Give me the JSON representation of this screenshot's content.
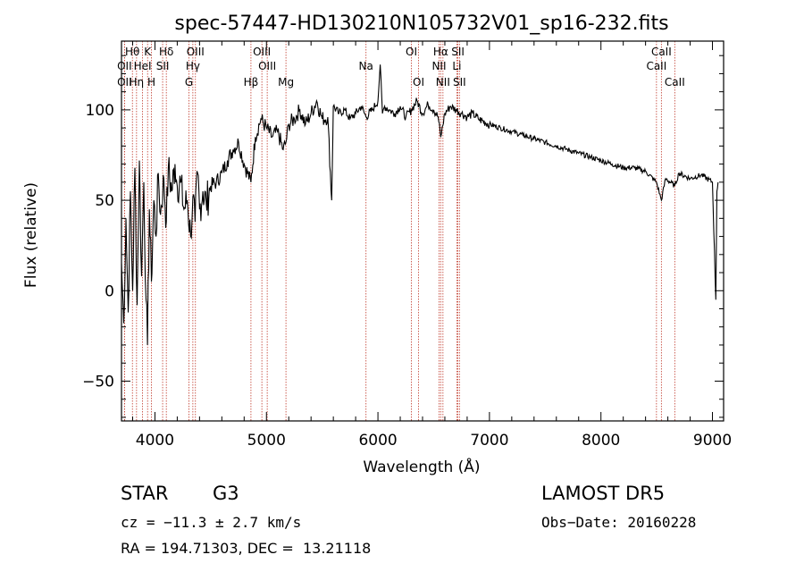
{
  "chart_data": {
    "type": "line",
    "title": "spec-57447-HD130210N105732V01_sp16-232.fits",
    "xlabel": "Wavelength (Å)",
    "ylabel": "Flux (relative)",
    "xlim": [
      3700,
      9100
    ],
    "ylim": [
      -72,
      138
    ],
    "xticks": [
      4000,
      5000,
      6000,
      7000,
      8000,
      9000
    ],
    "yticks": [
      -50,
      0,
      50,
      100
    ],
    "grid": false,
    "series": [
      {
        "color": "#000000",
        "x": [
          3700,
          3720,
          3740,
          3760,
          3780,
          3800,
          3820,
          3840,
          3860,
          3880,
          3900,
          3920,
          3933,
          3950,
          3968,
          3990,
          4010,
          4030,
          4050,
          4080,
          4102,
          4120,
          4150,
          4180,
          4200,
          4230,
          4260,
          4290,
          4320,
          4340,
          4360,
          4383,
          4400,
          4430,
          4460,
          4500,
          4550,
          4600,
          4650,
          4700,
          4750,
          4800,
          4861,
          4900,
          4950,
          5000,
          5050,
          5100,
          5150,
          5175,
          5200,
          5250,
          5300,
          5350,
          5400,
          5450,
          5500,
          5550,
          5585,
          5600,
          5650,
          5700,
          5750,
          5800,
          5850,
          5893,
          5950,
          6000,
          6020,
          6040,
          6060,
          6100,
          6150,
          6200,
          6250,
          6300,
          6350,
          6400,
          6450,
          6500,
          6540,
          6563,
          6600,
          6650,
          6700,
          6750,
          6800,
          6850,
          6900,
          7000,
          7100,
          7200,
          7300,
          7400,
          7500,
          7600,
          7700,
          7800,
          7900,
          8000,
          8100,
          8200,
          8300,
          8400,
          8498,
          8542,
          8580,
          8662,
          8700,
          8800,
          8900,
          9000,
          9030,
          9040,
          9050
        ],
        "y": [
          15,
          -18,
          40,
          -12,
          55,
          0,
          68,
          -8,
          72,
          8,
          60,
          -5,
          -30,
          45,
          5,
          50,
          30,
          65,
          42,
          62,
          38,
          68,
          55,
          70,
          58,
          60,
          45,
          50,
          30,
          52,
          38,
          65,
          45,
          55,
          48,
          58,
          60,
          65,
          72,
          78,
          82,
          70,
          60,
          85,
          95,
          90,
          85,
          88,
          78,
          82,
          92,
          95,
          100,
          92,
          98,
          105,
          95,
          96,
          50,
          102,
          98,
          100,
          95,
          98,
          102,
          96,
          100,
          105,
          125,
          98,
          102,
          100,
          98,
          102,
          96,
          100,
          105,
          98,
          103,
          100,
          96,
          85,
          98,
          102,
          100,
          98,
          96,
          98,
          95,
          92,
          90,
          88,
          86,
          84,
          82,
          80,
          78,
          76,
          74,
          72,
          70,
          68,
          68,
          66,
          60,
          50,
          62,
          58,
          65,
          62,
          64,
          60,
          -5,
          55,
          60
        ]
      }
    ],
    "spectral_lines": [
      {
        "label": "Hθ",
        "x": 3798,
        "row": 1
      },
      {
        "label": "OII",
        "x": 3727,
        "row": 2
      },
      {
        "label": "OII",
        "x": 3727,
        "row": 3
      },
      {
        "label": "K",
        "x": 3934,
        "row": 1
      },
      {
        "label": "HeI",
        "x": 3889,
        "row": 2
      },
      {
        "label": "Hη",
        "x": 3835,
        "row": 3
      },
      {
        "label": "H",
        "x": 3969,
        "row": 3
      },
      {
        "label": "Hδ",
        "x": 4102,
        "row": 1
      },
      {
        "label": "SII",
        "x": 4069,
        "row": 2
      },
      {
        "label": "OIII",
        "x": 4363,
        "row": 1
      },
      {
        "label": "Hγ",
        "x": 4340,
        "row": 2
      },
      {
        "label": "G",
        "x": 4305,
        "row": 3
      },
      {
        "label": "Hβ",
        "x": 4861,
        "row": 3
      },
      {
        "label": "OIII",
        "x": 4959,
        "row": 1
      },
      {
        "label": "OIII",
        "x": 5007,
        "row": 2
      },
      {
        "label": "Mg",
        "x": 5175,
        "row": 3
      },
      {
        "label": "Na",
        "x": 5893,
        "row": 2
      },
      {
        "label": "OI",
        "x": 6300,
        "row": 1
      },
      {
        "label": "OI",
        "x": 6364,
        "row": 3
      },
      {
        "label": "Hα",
        "x": 6563,
        "row": 1
      },
      {
        "label": "NII",
        "x": 6548,
        "row": 2
      },
      {
        "label": "NII",
        "x": 6583,
        "row": 3
      },
      {
        "label": "SII",
        "x": 6717,
        "row": 1
      },
      {
        "label": "Li",
        "x": 6708,
        "row": 2
      },
      {
        "label": "SII",
        "x": 6731,
        "row": 3
      },
      {
        "label": "CaII",
        "x": 8542,
        "row": 1
      },
      {
        "label": "CaII",
        "x": 8498,
        "row": 2
      },
      {
        "label": "CaII",
        "x": 8662,
        "row": 3
      }
    ],
    "line_marker_color": "#c0392b"
  },
  "info": {
    "class_label": "STAR",
    "subclass": "G3",
    "survey": "LAMOST DR5",
    "cz": "cz = −11.3 ± 2.7 km/s",
    "obs_date": "Obs−Date: 20160228",
    "coords": "RA = 194.71303, DEC =  13.21118"
  }
}
